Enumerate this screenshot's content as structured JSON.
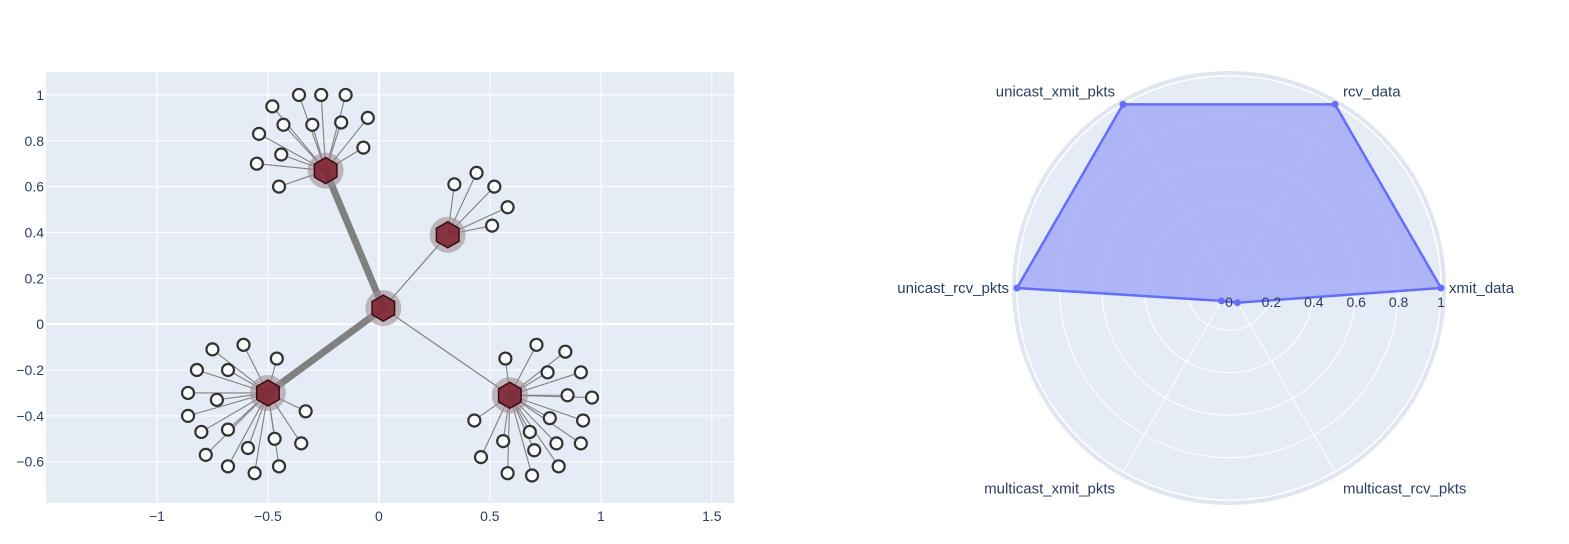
{
  "colors": {
    "plot_bg": "#E5ECF6",
    "grid": "#ffffff",
    "edge": "#808080",
    "hub_fill": "#7a1f2b",
    "hub_halo": "#9e8f94",
    "leaf_stroke": "#333333",
    "radar_line": "#636efa",
    "radar_fill": "#a5acf7",
    "tick_text": "#2a3f5f"
  },
  "chart_data": [
    {
      "type": "scatter",
      "subtype": "network-graph",
      "xlim": [
        -1.5,
        1.6
      ],
      "ylim": [
        -0.78,
        1.1
      ],
      "x_ticks": [
        {
          "value": -1,
          "label": "−1"
        },
        {
          "value": -0.5,
          "label": "−0.5"
        },
        {
          "value": 0,
          "label": "0"
        },
        {
          "value": 0.5,
          "label": "0.5"
        },
        {
          "value": 1,
          "label": "1"
        },
        {
          "value": 1.5,
          "label": "1.5"
        }
      ],
      "y_ticks": [
        {
          "value": 1,
          "label": "1"
        },
        {
          "value": 0.8,
          "label": "0.8"
        },
        {
          "value": 0.6,
          "label": "0.6"
        },
        {
          "value": 0.4,
          "label": "0.4"
        },
        {
          "value": 0.2,
          "label": "0.2"
        },
        {
          "value": 0,
          "label": "0"
        },
        {
          "value": -0.2,
          "label": "−0.2"
        },
        {
          "value": -0.4,
          "label": "−0.4"
        },
        {
          "value": -0.6,
          "label": "−0.6"
        }
      ],
      "grid": true,
      "hubs": [
        {
          "x": 0.02,
          "y": 0.07
        },
        {
          "x": -0.24,
          "y": 0.67
        },
        {
          "x": 0.31,
          "y": 0.39
        },
        {
          "x": -0.5,
          "y": -0.3
        },
        {
          "x": 0.59,
          "y": -0.31
        }
      ],
      "hub_edges": [
        {
          "from": 0,
          "to": 1,
          "weight": "thick"
        },
        {
          "from": 0,
          "to": 2,
          "weight": "thin"
        },
        {
          "from": 0,
          "to": 3,
          "weight": "thick"
        },
        {
          "from": 0,
          "to": 4,
          "weight": "thin"
        }
      ],
      "leaves": [
        {
          "hub": 1,
          "x": -0.48,
          "y": 0.95
        },
        {
          "hub": 1,
          "x": -0.36,
          "y": 1.0
        },
        {
          "hub": 1,
          "x": -0.26,
          "y": 1.0
        },
        {
          "hub": 1,
          "x": -0.15,
          "y": 1.0
        },
        {
          "hub": 1,
          "x": -0.05,
          "y": 0.9
        },
        {
          "hub": 1,
          "x": -0.07,
          "y": 0.77
        },
        {
          "hub": 1,
          "x": -0.17,
          "y": 0.88
        },
        {
          "hub": 1,
          "x": -0.3,
          "y": 0.87
        },
        {
          "hub": 1,
          "x": -0.43,
          "y": 0.87
        },
        {
          "hub": 1,
          "x": -0.54,
          "y": 0.83
        },
        {
          "hub": 1,
          "x": -0.44,
          "y": 0.74
        },
        {
          "hub": 1,
          "x": -0.55,
          "y": 0.7
        },
        {
          "hub": 1,
          "x": -0.45,
          "y": 0.6
        },
        {
          "hub": 2,
          "x": 0.34,
          "y": 0.61
        },
        {
          "hub": 2,
          "x": 0.44,
          "y": 0.66
        },
        {
          "hub": 2,
          "x": 0.52,
          "y": 0.6
        },
        {
          "hub": 2,
          "x": 0.58,
          "y": 0.51
        },
        {
          "hub": 2,
          "x": 0.51,
          "y": 0.43
        },
        {
          "hub": 3,
          "x": -0.75,
          "y": -0.11
        },
        {
          "hub": 3,
          "x": -0.61,
          "y": -0.09
        },
        {
          "hub": 3,
          "x": -0.46,
          "y": -0.15
        },
        {
          "hub": 3,
          "x": -0.82,
          "y": -0.2
        },
        {
          "hub": 3,
          "x": -0.68,
          "y": -0.2
        },
        {
          "hub": 3,
          "x": -0.86,
          "y": -0.3
        },
        {
          "hub": 3,
          "x": -0.73,
          "y": -0.33
        },
        {
          "hub": 3,
          "x": -0.86,
          "y": -0.4
        },
        {
          "hub": 3,
          "x": -0.8,
          "y": -0.47
        },
        {
          "hub": 3,
          "x": -0.68,
          "y": -0.46
        },
        {
          "hub": 3,
          "x": -0.78,
          "y": -0.57
        },
        {
          "hub": 3,
          "x": -0.68,
          "y": -0.62
        },
        {
          "hub": 3,
          "x": -0.59,
          "y": -0.54
        },
        {
          "hub": 3,
          "x": -0.56,
          "y": -0.65
        },
        {
          "hub": 3,
          "x": -0.47,
          "y": -0.5
        },
        {
          "hub": 3,
          "x": -0.45,
          "y": -0.62
        },
        {
          "hub": 3,
          "x": -0.35,
          "y": -0.52
        },
        {
          "hub": 3,
          "x": -0.33,
          "y": -0.38
        },
        {
          "hub": 4,
          "x": 0.57,
          "y": -0.15
        },
        {
          "hub": 4,
          "x": 0.71,
          "y": -0.09
        },
        {
          "hub": 4,
          "x": 0.84,
          "y": -0.12
        },
        {
          "hub": 4,
          "x": 0.76,
          "y": -0.21
        },
        {
          "hub": 4,
          "x": 0.91,
          "y": -0.21
        },
        {
          "hub": 4,
          "x": 0.85,
          "y": -0.31
        },
        {
          "hub": 4,
          "x": 0.96,
          "y": -0.32
        },
        {
          "hub": 4,
          "x": 0.92,
          "y": -0.42
        },
        {
          "hub": 4,
          "x": 0.77,
          "y": -0.41
        },
        {
          "hub": 4,
          "x": 0.8,
          "y": -0.52
        },
        {
          "hub": 4,
          "x": 0.91,
          "y": -0.52
        },
        {
          "hub": 4,
          "x": 0.68,
          "y": -0.47
        },
        {
          "hub": 4,
          "x": 0.7,
          "y": -0.55
        },
        {
          "hub": 4,
          "x": 0.81,
          "y": -0.62
        },
        {
          "hub": 4,
          "x": 0.69,
          "y": -0.66
        },
        {
          "hub": 4,
          "x": 0.58,
          "y": -0.65
        },
        {
          "hub": 4,
          "x": 0.56,
          "y": -0.51
        },
        {
          "hub": 4,
          "x": 0.46,
          "y": -0.58
        },
        {
          "hub": 4,
          "x": 0.43,
          "y": -0.42
        }
      ]
    },
    {
      "type": "radar",
      "categories": [
        "xmit_data",
        "rcv_data",
        "unicast_xmit_pkts",
        "unicast_rcv_pkts",
        "multicast_xmit_pkts",
        "multicast_rcv_pkts"
      ],
      "values": [
        1.0,
        1.0,
        1.0,
        1.0,
        0.07,
        0.08
      ],
      "radial_range": [
        0,
        1
      ],
      "radial_ticks": [
        {
          "value": 0,
          "label": "0"
        },
        {
          "value": 0.2,
          "label": "0.2"
        },
        {
          "value": 0.4,
          "label": "0.4"
        },
        {
          "value": 0.6,
          "label": "0.6"
        },
        {
          "value": 0.8,
          "label": "0.8"
        },
        {
          "value": 1,
          "label": "1"
        }
      ],
      "fill": "toself",
      "grid": true
    }
  ]
}
